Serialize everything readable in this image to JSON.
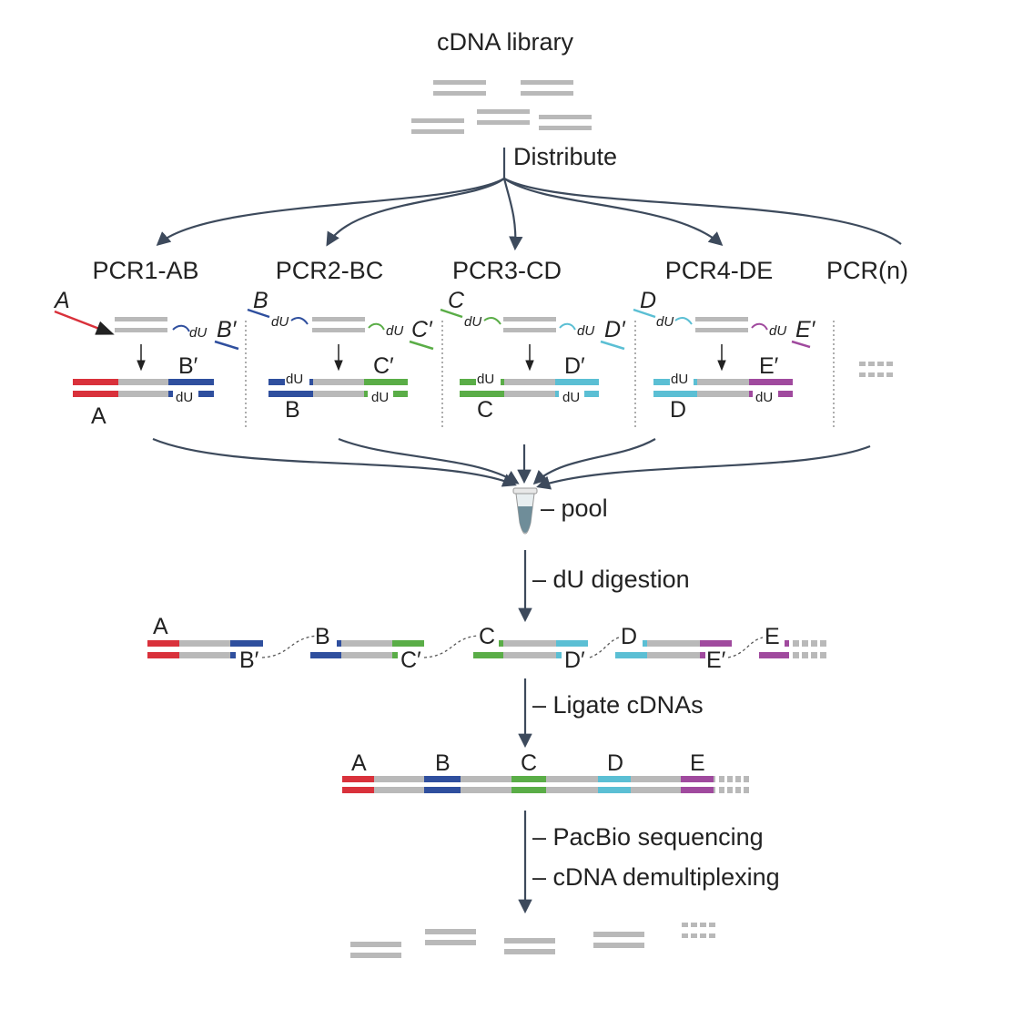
{
  "title": "cDNA library",
  "steps": {
    "distribute": "Distribute",
    "pool": "– pool",
    "digestion": "– dU digestion",
    "ligate": "– Ligate cDNAs",
    "sequencing": "– PacBio sequencing",
    "demux": "– cDNA demultiplexing"
  },
  "du": "dU",
  "pcr_labels": [
    "PCR1-AB",
    "PCR2-BC",
    "PCR3-CD",
    "PCR4-DE",
    "PCR(n)"
  ],
  "adapters": {
    "A": "A",
    "B": "B",
    "C": "C",
    "D": "D",
    "E": "E",
    "Bp": "B′",
    "Cp": "C′",
    "Dp": "D′",
    "Ep": "E′"
  },
  "colors": {
    "A": "#d9313b",
    "B": "#2f4f9e",
    "C": "#5aad47",
    "D": "#5bbfd4",
    "E": "#a04a9e",
    "insert": "#b9b9b9",
    "arrow": "#3d4a5c",
    "tube": "#6f8d99"
  }
}
